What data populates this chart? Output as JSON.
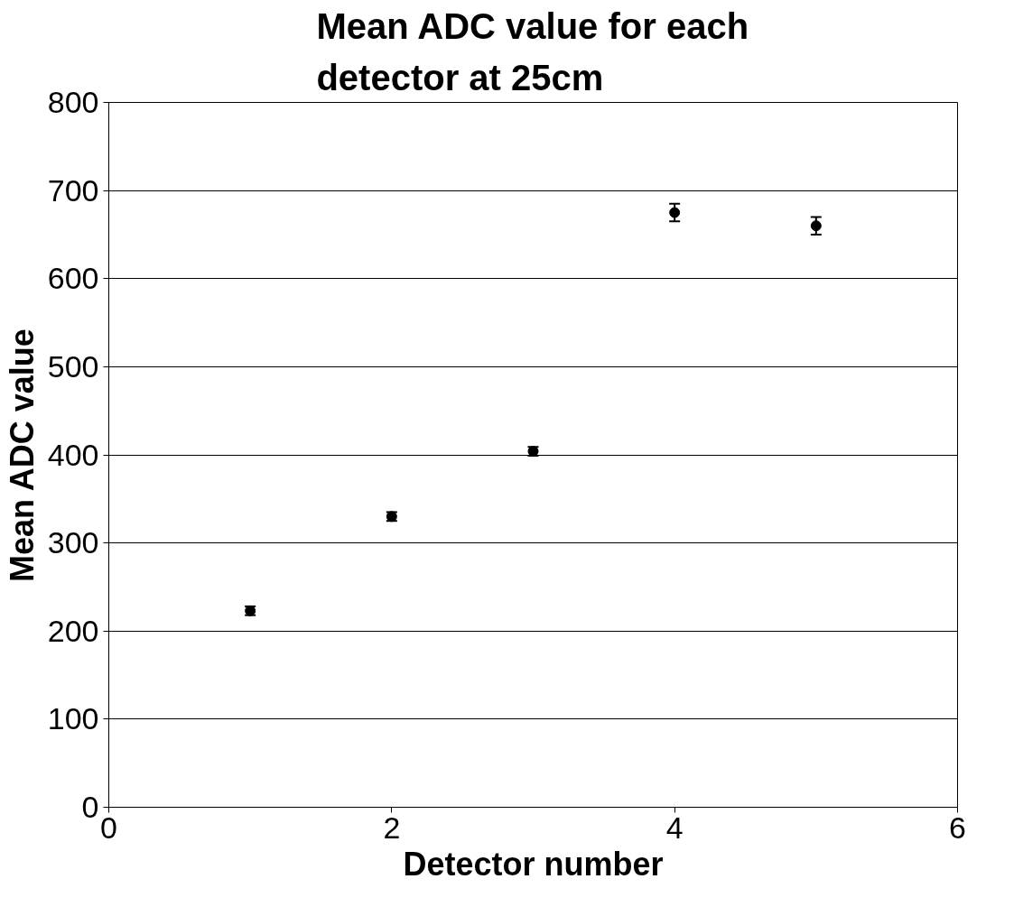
{
  "chart_data": {
    "type": "scatter",
    "title": "Mean ADC value for each\ndetector at 25cm",
    "xlabel": "Detector number",
    "ylabel": "Mean ADC value",
    "x": [
      1,
      2,
      3,
      4,
      5
    ],
    "series": [
      {
        "color": "#000000",
        "values": [
          223,
          330,
          404,
          675,
          660
        ],
        "errors": [
          5,
          5,
          5,
          10,
          10
        ]
      }
    ],
    "xlim": [
      0,
      6
    ],
    "xticks": [
      0,
      2,
      4,
      6
    ],
    "ylim": [
      0,
      800
    ],
    "yticks": [
      0,
      100,
      200,
      300,
      400,
      500,
      600,
      700,
      800
    ],
    "grid": "y",
    "marker": "circle"
  }
}
